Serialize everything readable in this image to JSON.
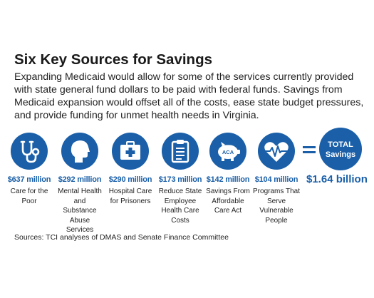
{
  "header": {
    "title": "Six Key Sources for Savings",
    "intro": "Expanding Medicaid would allow for some of the services currently provided with state general fund dollars to be paid with federal funds. Savings from Medicaid expansion would offset all of the costs, ease state budget pressures, and provide funding for unmet health needs in Virginia."
  },
  "colors": {
    "accent": "#1a5fa8",
    "text": "#222222",
    "background": "#ffffff"
  },
  "items": [
    {
      "icon": "stethoscope-icon",
      "amount": "$637 million",
      "desc": "Care for the Poor"
    },
    {
      "icon": "head-profile-icon",
      "amount": "$292 million",
      "desc": "Mental Health and Substance Abuse Services"
    },
    {
      "icon": "medical-kit-icon",
      "amount": "$290 million",
      "desc": "Hospital Care for Prisoners"
    },
    {
      "icon": "clipboard-icon",
      "amount": "$173 million",
      "desc": "Reduce State Employee Health Care Costs"
    },
    {
      "icon": "piggy-bank-icon",
      "amount": "$142 million",
      "desc": "Savings From Affordable Care Act",
      "icon_label": "ACA"
    },
    {
      "icon": "heartbeat-icon",
      "amount": "$104 million",
      "desc": "Programs That Serve Vulnerable People"
    }
  ],
  "total": {
    "label_line1": "TOTAL",
    "label_line2": "Savings",
    "amount": "$1.64 billion"
  },
  "footer": {
    "source": "Sources: TCI analyses of DMAS and Senate Finance Committee"
  }
}
